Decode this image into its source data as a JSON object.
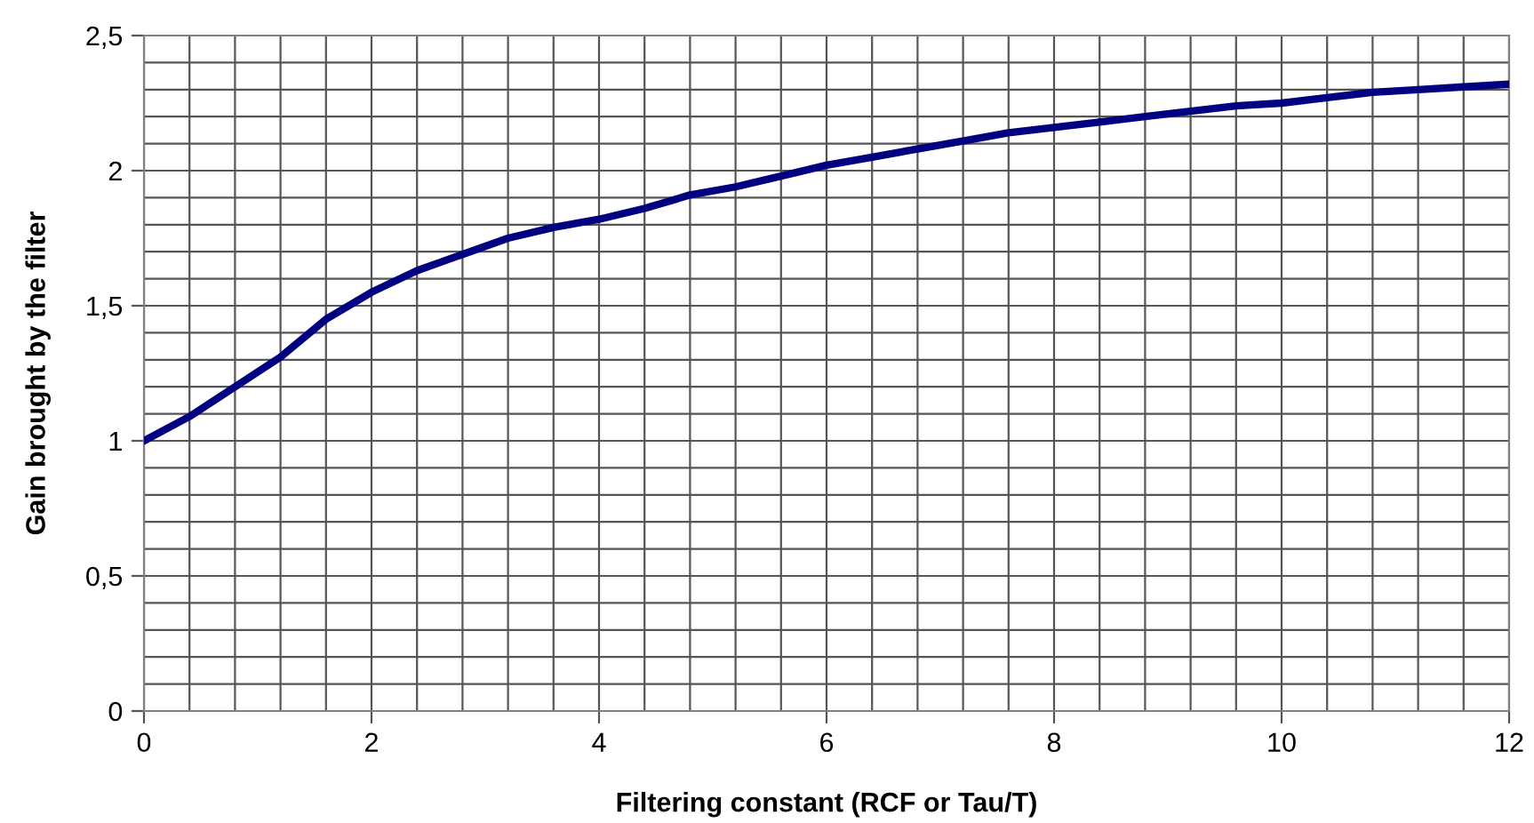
{
  "chart_data": {
    "type": "line",
    "xlabel": "Filtering constant (RCF or Tau/T)",
    "ylabel": "Gain brought by the filter",
    "x": [
      0,
      0.4,
      0.8,
      1.2,
      1.6,
      2,
      2.4,
      2.8,
      3.2,
      3.6,
      4,
      4.4,
      4.8,
      5.2,
      5.6,
      6,
      6.4,
      6.8,
      7.2,
      7.6,
      8,
      8.4,
      8.8,
      9.2,
      9.6,
      10,
      10.4,
      10.8,
      11.2,
      11.6,
      12
    ],
    "series": [
      {
        "color": "#000080",
        "values": [
          1.0,
          1.09,
          1.2,
          1.31,
          1.45,
          1.55,
          1.63,
          1.69,
          1.75,
          1.79,
          1.82,
          1.86,
          1.91,
          1.94,
          1.98,
          2.02,
          2.05,
          2.08,
          2.11,
          2.14,
          2.16,
          2.18,
          2.2,
          2.22,
          2.24,
          2.25,
          2.27,
          2.29,
          2.3,
          2.31,
          2.32
        ]
      }
    ],
    "xlim": [
      0,
      12
    ],
    "xticks": [
      0,
      2,
      4,
      6,
      8,
      10,
      12
    ],
    "ylim": [
      0,
      2.5
    ],
    "yticks": [
      0,
      {
        "value": 0.5,
        "label": "0,5"
      },
      1,
      {
        "value": 1.5,
        "label": "1,5"
      },
      2,
      {
        "value": 2.5,
        "label": "2,5"
      }
    ],
    "grid": true,
    "legend": false,
    "marker": "none",
    "line_style": "solid"
  }
}
